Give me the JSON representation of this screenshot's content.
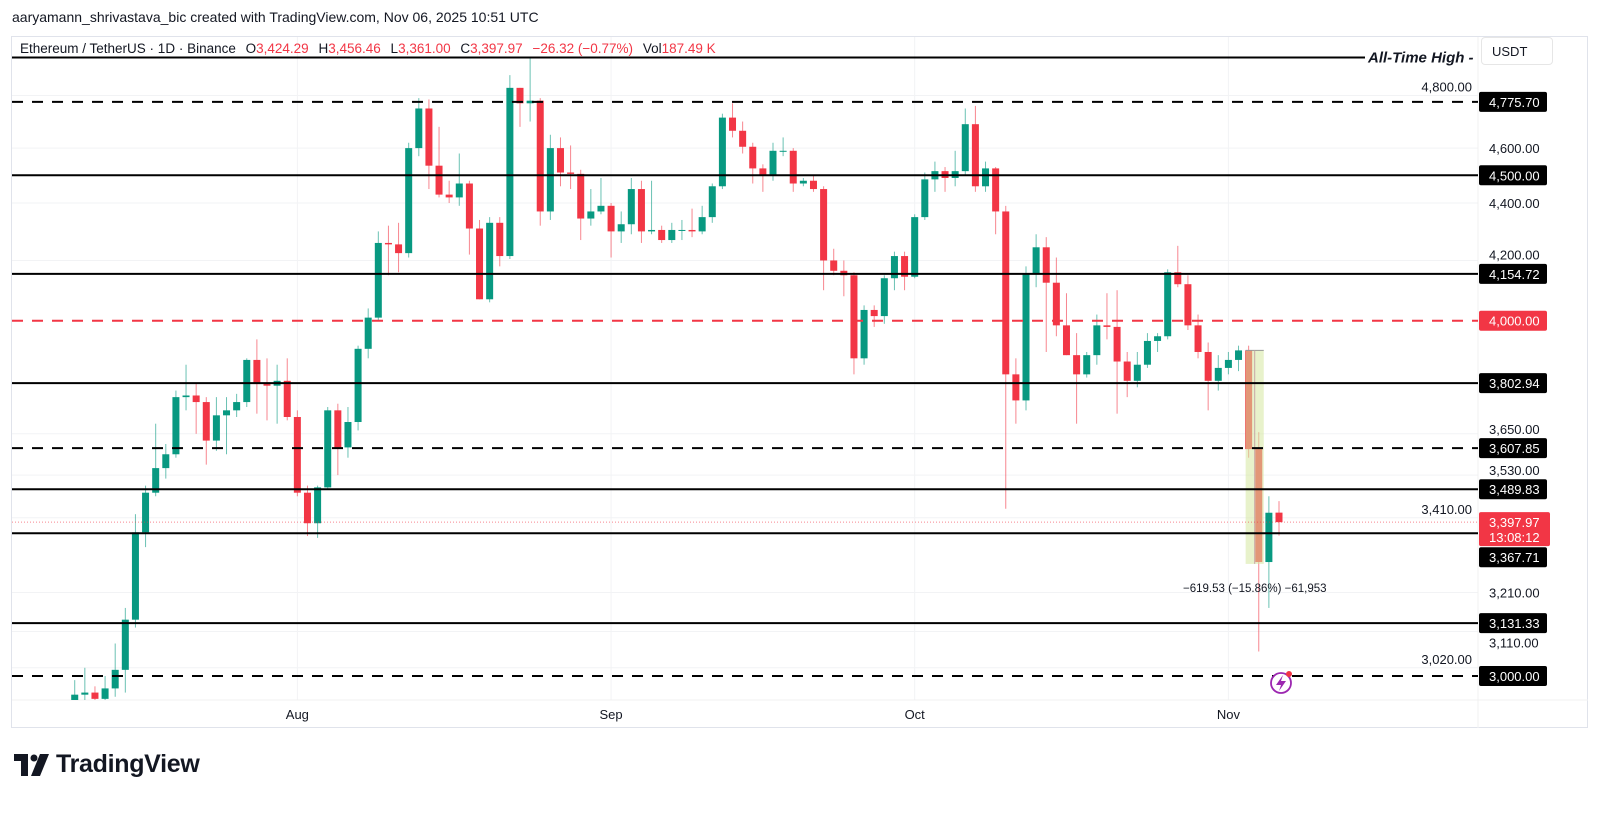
{
  "header": {
    "credit": "aaryamann_shrivastava_bic created with TradingView.com, Nov 06, 2025 10:51 UTC"
  },
  "legend": {
    "symbol": "Ethereum / TetherUS · 1D · Binance",
    "o_label": "O",
    "o": "3,424.29",
    "h_label": "H",
    "h": "3,456.46",
    "l_label": "L",
    "l": "3,361.00",
    "c_label": "C",
    "c": "3,397.97",
    "change": "−26.32 (−0.77%)",
    "vol_label": "Vol",
    "vol": "187.49 K"
  },
  "currency_button": "USDT",
  "brand": "TradingView",
  "colors": {
    "up": "#089981",
    "down": "#F23645",
    "level": "#000000",
    "level_red": "#F23645"
  },
  "icons": {
    "bolt": "lightning-bolt-icon"
  },
  "chart_data": {
    "type": "candlestick",
    "title": "",
    "y_scale": "log",
    "ylim": [
      2950,
      4960
    ],
    "grid": true,
    "x_tick_labels": [
      {
        "date": "2025-08-01",
        "label": "Aug"
      },
      {
        "date": "2025-09-01",
        "label": "Sep"
      },
      {
        "date": "2025-10-01",
        "label": "Oct"
      },
      {
        "date": "2025-11-01",
        "label": "Nov"
      }
    ],
    "y_tick_labels": [
      {
        "value": 4800,
        "label": "4,800.00"
      },
      {
        "value": 4600,
        "label": "4,600.00"
      },
      {
        "value": 4400,
        "label": "4,400.00"
      },
      {
        "value": 4200,
        "label": "4,200.00"
      },
      {
        "value": 3650,
        "label": "3,650.00"
      },
      {
        "value": 3530,
        "label": "3,530.00"
      },
      {
        "value": 3410,
        "label": "3,410.00"
      },
      {
        "value": 3210,
        "label": "3,210.00"
      },
      {
        "value": 3110,
        "label": "3,110.00"
      },
      {
        "value": 3020,
        "label": "3,020.00"
      }
    ],
    "levels": [
      {
        "value": 4950,
        "style": "solid",
        "color": "#000000",
        "text": "All-Time High -",
        "label": ""
      },
      {
        "value": 4775.7,
        "style": "dashed",
        "color": "#000000",
        "label": "4,775.70"
      },
      {
        "value": 4500.0,
        "style": "solid",
        "color": "#000000",
        "label": "4,500.00"
      },
      {
        "value": 4154.72,
        "style": "solid",
        "color": "#000000",
        "label": "4,154.72"
      },
      {
        "value": 4000.0,
        "style": "dashed",
        "color": "#F23645",
        "label": "4,000.00"
      },
      {
        "value": 3802.94,
        "style": "solid",
        "color": "#000000",
        "label": "3,802.94"
      },
      {
        "value": 3607.85,
        "style": "dashed",
        "color": "#000000",
        "label": "3,607.85"
      },
      {
        "value": 3489.83,
        "style": "solid",
        "color": "#000000",
        "label": "3,489.83"
      },
      {
        "value": 3367.71,
        "style": "solid",
        "color": "#000000",
        "label": "3,367.71"
      },
      {
        "value": 3131.33,
        "style": "solid",
        "color": "#000000",
        "label": "3,131.33"
      },
      {
        "value": 3000.0,
        "style": "dashed",
        "color": "#000000",
        "label": "3,000.00"
      }
    ],
    "current_price": {
      "value": 3397.97,
      "label": "3,397.97",
      "countdown": "13:08:12"
    },
    "measurement": {
      "from_date": "2025-11-03",
      "to_date": "2025-11-04",
      "from": 3905,
      "to": 3285,
      "label": "−619.53 (−15.86%) −61,953"
    },
    "ohlc_columns": [
      "date",
      "open",
      "high",
      "low",
      "close"
    ],
    "ohlc": [
      [
        "2025-07-10",
        2770,
        2990,
        2760,
        2955
      ],
      [
        "2025-07-11",
        2955,
        3020,
        2920,
        2960
      ],
      [
        "2025-07-12",
        2960,
        2975,
        2900,
        2945
      ],
      [
        "2025-07-13",
        2945,
        3000,
        2935,
        2970
      ],
      [
        "2025-07-14",
        2970,
        3080,
        2950,
        3015
      ],
      [
        "2025-07-15",
        3015,
        3170,
        2960,
        3140
      ],
      [
        "2025-07-16",
        3140,
        3420,
        3120,
        3370
      ],
      [
        "2025-07-17",
        3370,
        3500,
        3330,
        3480
      ],
      [
        "2025-07-18",
        3480,
        3680,
        3470,
        3550
      ],
      [
        "2025-07-19",
        3550,
        3620,
        3520,
        3590
      ],
      [
        "2025-07-20",
        3590,
        3780,
        3580,
        3760
      ],
      [
        "2025-07-21",
        3760,
        3860,
        3720,
        3765
      ],
      [
        "2025-07-22",
        3765,
        3800,
        3650,
        3745
      ],
      [
        "2025-07-23",
        3745,
        3760,
        3560,
        3630
      ],
      [
        "2025-07-24",
        3630,
        3760,
        3600,
        3705
      ],
      [
        "2025-07-25",
        3705,
        3760,
        3590,
        3720
      ],
      [
        "2025-07-26",
        3720,
        3770,
        3700,
        3745
      ],
      [
        "2025-07-27",
        3745,
        3880,
        3730,
        3875
      ],
      [
        "2025-07-28",
        3875,
        3940,
        3710,
        3800
      ],
      [
        "2025-07-29",
        3800,
        3880,
        3690,
        3795
      ],
      [
        "2025-07-30",
        3795,
        3860,
        3680,
        3810
      ],
      [
        "2025-07-31",
        3810,
        3880,
        3690,
        3700
      ],
      [
        "2025-08-01",
        3700,
        3720,
        3470,
        3480
      ],
      [
        "2025-08-02",
        3480,
        3500,
        3360,
        3395
      ],
      [
        "2025-08-03",
        3395,
        3500,
        3355,
        3495
      ],
      [
        "2025-08-04",
        3495,
        3730,
        3490,
        3720
      ],
      [
        "2025-08-05",
        3720,
        3740,
        3530,
        3610
      ],
      [
        "2025-08-06",
        3610,
        3730,
        3580,
        3685
      ],
      [
        "2025-08-07",
        3685,
        3920,
        3660,
        3910
      ],
      [
        "2025-08-08",
        3910,
        4040,
        3880,
        4010
      ],
      [
        "2025-08-09",
        4010,
        4300,
        4000,
        4260
      ],
      [
        "2025-08-10",
        4260,
        4320,
        4150,
        4255
      ],
      [
        "2025-08-11",
        4255,
        4330,
        4160,
        4225
      ],
      [
        "2025-08-12",
        4225,
        4620,
        4210,
        4600
      ],
      [
        "2025-08-13",
        4600,
        4790,
        4570,
        4750
      ],
      [
        "2025-08-14",
        4750,
        4785,
        4450,
        4535
      ],
      [
        "2025-08-15",
        4535,
        4680,
        4420,
        4430
      ],
      [
        "2025-08-16",
        4430,
        4480,
        4400,
        4420
      ],
      [
        "2025-08-17",
        4420,
        4580,
        4390,
        4470
      ],
      [
        "2025-08-18",
        4470,
        4480,
        4220,
        4310
      ],
      [
        "2025-08-19",
        4310,
        4340,
        4070,
        4070
      ],
      [
        "2025-08-20",
        4070,
        4350,
        4060,
        4330
      ],
      [
        "2025-08-21",
        4330,
        4350,
        4180,
        4215
      ],
      [
        "2025-08-22",
        4215,
        4880,
        4205,
        4830
      ],
      [
        "2025-08-23",
        4830,
        4830,
        4680,
        4770
      ],
      [
        "2025-08-24",
        4770,
        4950,
        4700,
        4780
      ],
      [
        "2025-08-25",
        4780,
        4790,
        4320,
        4370
      ],
      [
        "2025-08-26",
        4370,
        4650,
        4340,
        4600
      ],
      [
        "2025-08-27",
        4600,
        4640,
        4460,
        4510
      ],
      [
        "2025-08-28",
        4510,
        4610,
        4450,
        4505
      ],
      [
        "2025-08-29",
        4505,
        4520,
        4270,
        4345
      ],
      [
        "2025-08-30",
        4345,
        4450,
        4320,
        4370
      ],
      [
        "2025-08-31",
        4370,
        4490,
        4360,
        4390
      ],
      [
        "2025-09-01",
        4390,
        4400,
        4210,
        4300
      ],
      [
        "2025-09-02",
        4300,
        4370,
        4260,
        4325
      ],
      [
        "2025-09-03",
        4325,
        4490,
        4290,
        4450
      ],
      [
        "2025-09-04",
        4450,
        4480,
        4260,
        4300
      ],
      [
        "2025-09-05",
        4300,
        4480,
        4290,
        4305
      ],
      [
        "2025-09-06",
        4305,
        4320,
        4260,
        4270
      ],
      [
        "2025-09-07",
        4270,
        4330,
        4260,
        4305
      ],
      [
        "2025-09-08",
        4305,
        4340,
        4270,
        4305
      ],
      [
        "2025-09-09",
        4305,
        4380,
        4280,
        4300
      ],
      [
        "2025-09-10",
        4300,
        4390,
        4290,
        4350
      ],
      [
        "2025-09-11",
        4350,
        4470,
        4330,
        4460
      ],
      [
        "2025-09-12",
        4460,
        4730,
        4450,
        4715
      ],
      [
        "2025-09-13",
        4715,
        4770,
        4640,
        4665
      ],
      [
        "2025-09-14",
        4665,
        4700,
        4580,
        4605
      ],
      [
        "2025-09-15",
        4605,
        4620,
        4470,
        4525
      ],
      [
        "2025-09-16",
        4525,
        4540,
        4440,
        4500
      ],
      [
        "2025-09-17",
        4500,
        4620,
        4480,
        4590
      ],
      [
        "2025-09-18",
        4590,
        4640,
        4570,
        4590
      ],
      [
        "2025-09-19",
        4590,
        4600,
        4440,
        4470
      ],
      [
        "2025-09-20",
        4470,
        4490,
        4460,
        4480
      ],
      [
        "2025-09-21",
        4480,
        4500,
        4440,
        4450
      ],
      [
        "2025-09-22",
        4450,
        4460,
        4100,
        4200
      ],
      [
        "2025-09-23",
        4200,
        4240,
        4150,
        4165
      ],
      [
        "2025-09-24",
        4165,
        4200,
        4080,
        4150
      ],
      [
        "2025-09-25",
        4150,
        4160,
        3830,
        3880
      ],
      [
        "2025-09-26",
        3880,
        4050,
        3860,
        4035
      ],
      [
        "2025-09-27",
        4035,
        4050,
        3980,
        4015
      ],
      [
        "2025-09-28",
        4015,
        4150,
        3990,
        4140
      ],
      [
        "2025-09-29",
        4140,
        4230,
        4100,
        4215
      ],
      [
        "2025-09-30",
        4215,
        4230,
        4100,
        4145
      ],
      [
        "2025-10-01",
        4145,
        4360,
        4140,
        4350
      ],
      [
        "2025-10-02",
        4350,
        4510,
        4340,
        4485
      ],
      [
        "2025-10-03",
        4485,
        4550,
        4440,
        4515
      ],
      [
        "2025-10-04",
        4515,
        4530,
        4440,
        4490
      ],
      [
        "2025-10-05",
        4490,
        4590,
        4460,
        4515
      ],
      [
        "2025-10-06",
        4515,
        4750,
        4500,
        4690
      ],
      [
        "2025-10-07",
        4690,
        4760,
        4440,
        4460
      ],
      [
        "2025-10-08",
        4460,
        4550,
        4440,
        4525
      ],
      [
        "2025-10-09",
        4525,
        4530,
        4290,
        4370
      ],
      [
        "2025-10-10",
        4370,
        4390,
        3435,
        3830
      ],
      [
        "2025-10-11",
        3830,
        3880,
        3680,
        3750
      ],
      [
        "2025-10-12",
        3750,
        4180,
        3720,
        4155
      ],
      [
        "2025-10-13",
        4155,
        4290,
        4110,
        4245
      ],
      [
        "2025-10-14",
        4245,
        4280,
        3900,
        4125
      ],
      [
        "2025-10-15",
        4125,
        4210,
        3950,
        3985
      ],
      [
        "2025-10-16",
        3985,
        4090,
        3890,
        3890
      ],
      [
        "2025-10-17",
        3890,
        3960,
        3680,
        3830
      ],
      [
        "2025-10-18",
        3830,
        3900,
        3820,
        3890
      ],
      [
        "2025-10-19",
        3890,
        4020,
        3860,
        3985
      ],
      [
        "2025-10-20",
        3985,
        4090,
        3940,
        3980
      ],
      [
        "2025-10-21",
        3980,
        4100,
        3710,
        3870
      ],
      [
        "2025-10-22",
        3870,
        3900,
        3760,
        3810
      ],
      [
        "2025-10-23",
        3810,
        3900,
        3790,
        3860
      ],
      [
        "2025-10-24",
        3860,
        3960,
        3850,
        3935
      ],
      [
        "2025-10-25",
        3935,
        3960,
        3900,
        3950
      ],
      [
        "2025-10-26",
        3950,
        4170,
        3940,
        4160
      ],
      [
        "2025-10-27",
        4160,
        4250,
        4110,
        4120
      ],
      [
        "2025-10-28",
        4120,
        4150,
        3970,
        3985
      ],
      [
        "2025-10-29",
        3985,
        4020,
        3880,
        3900
      ],
      [
        "2025-10-30",
        3900,
        3930,
        3720,
        3810
      ],
      [
        "2025-10-31",
        3810,
        3890,
        3780,
        3850
      ],
      [
        "2025-11-01",
        3850,
        3900,
        3830,
        3875
      ],
      [
        "2025-11-02",
        3875,
        3920,
        3840,
        3905
      ],
      [
        "2025-11-03",
        3905,
        3920,
        3580,
        3605
      ],
      [
        "2025-11-04",
        3605,
        3655,
        3060,
        3290
      ],
      [
        "2025-11-05",
        3290,
        3470,
        3170,
        3424
      ],
      [
        "2025-11-06",
        3424.29,
        3456.46,
        3361.0,
        3397.97
      ]
    ]
  }
}
